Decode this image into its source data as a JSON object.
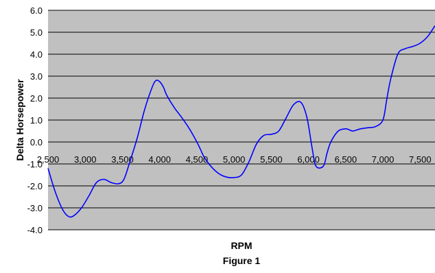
{
  "chart_data": {
    "type": "line",
    "title": "",
    "caption": "Figure 1",
    "xlabel": "RPM",
    "ylabel": "Delta Horsepower",
    "xlim": [
      2500,
      7700
    ],
    "ylim": [
      -4.0,
      6.0
    ],
    "grid": true,
    "legend": "none",
    "colors": {
      "line": "#0000ff",
      "plot_bg": "#c0c0c0",
      "grid": "#000000"
    },
    "x_ticks": [
      2500,
      3000,
      3500,
      4000,
      4500,
      5000,
      5500,
      6000,
      6500,
      7000,
      7500
    ],
    "x_tick_labels": [
      "2,500",
      "3,000",
      "3,500",
      "4,000",
      "4,500",
      "5,000",
      "5,500",
      "6,000",
      "6,500",
      "7,000",
      "7,500"
    ],
    "y_ticks": [
      -4.0,
      -3.0,
      -2.0,
      -1.0,
      0.0,
      1.0,
      2.0,
      3.0,
      4.0,
      5.0,
      6.0
    ],
    "y_tick_labels": [
      "-4.0",
      "-3.0",
      "-2.0",
      "-1.0",
      "0.0",
      "1.0",
      "2.0",
      "3.0",
      "4.0",
      "5.0",
      "6.0"
    ],
    "series": [
      {
        "x": [
          2500,
          2600,
          2700,
          2780,
          2850,
          2950,
          3050,
          3150,
          3250,
          3350,
          3450,
          3520,
          3600,
          3700,
          3800,
          3900,
          3950,
          4000,
          4050,
          4100,
          4200,
          4300,
          4400,
          4500,
          4550,
          4600,
          4700,
          4800,
          4900,
          5000,
          5100,
          5200,
          5300,
          5400,
          5500,
          5600,
          5700,
          5800,
          5900,
          5980,
          6050,
          6100,
          6200,
          6250,
          6300,
          6400,
          6500,
          6550,
          6600,
          6700,
          6800,
          6900,
          7000,
          7050,
          7100,
          7200,
          7300,
          7400,
          7500,
          7600,
          7700
        ],
        "y": [
          -1.2,
          -2.3,
          -3.1,
          -3.4,
          -3.35,
          -3.0,
          -2.45,
          -1.85,
          -1.7,
          -1.85,
          -1.9,
          -1.7,
          -0.9,
          0.2,
          1.5,
          2.5,
          2.8,
          2.75,
          2.5,
          2.1,
          1.55,
          1.1,
          0.6,
          0.0,
          -0.35,
          -0.7,
          -1.15,
          -1.45,
          -1.6,
          -1.62,
          -1.5,
          -0.9,
          -0.1,
          0.3,
          0.35,
          0.5,
          1.1,
          1.7,
          1.8,
          1.1,
          -0.3,
          -1.1,
          -1.1,
          -0.5,
          0.0,
          0.5,
          0.6,
          0.55,
          0.5,
          0.6,
          0.65,
          0.7,
          1.0,
          1.9,
          2.8,
          4.0,
          4.25,
          4.35,
          4.5,
          4.8,
          5.3
        ]
      }
    ]
  }
}
